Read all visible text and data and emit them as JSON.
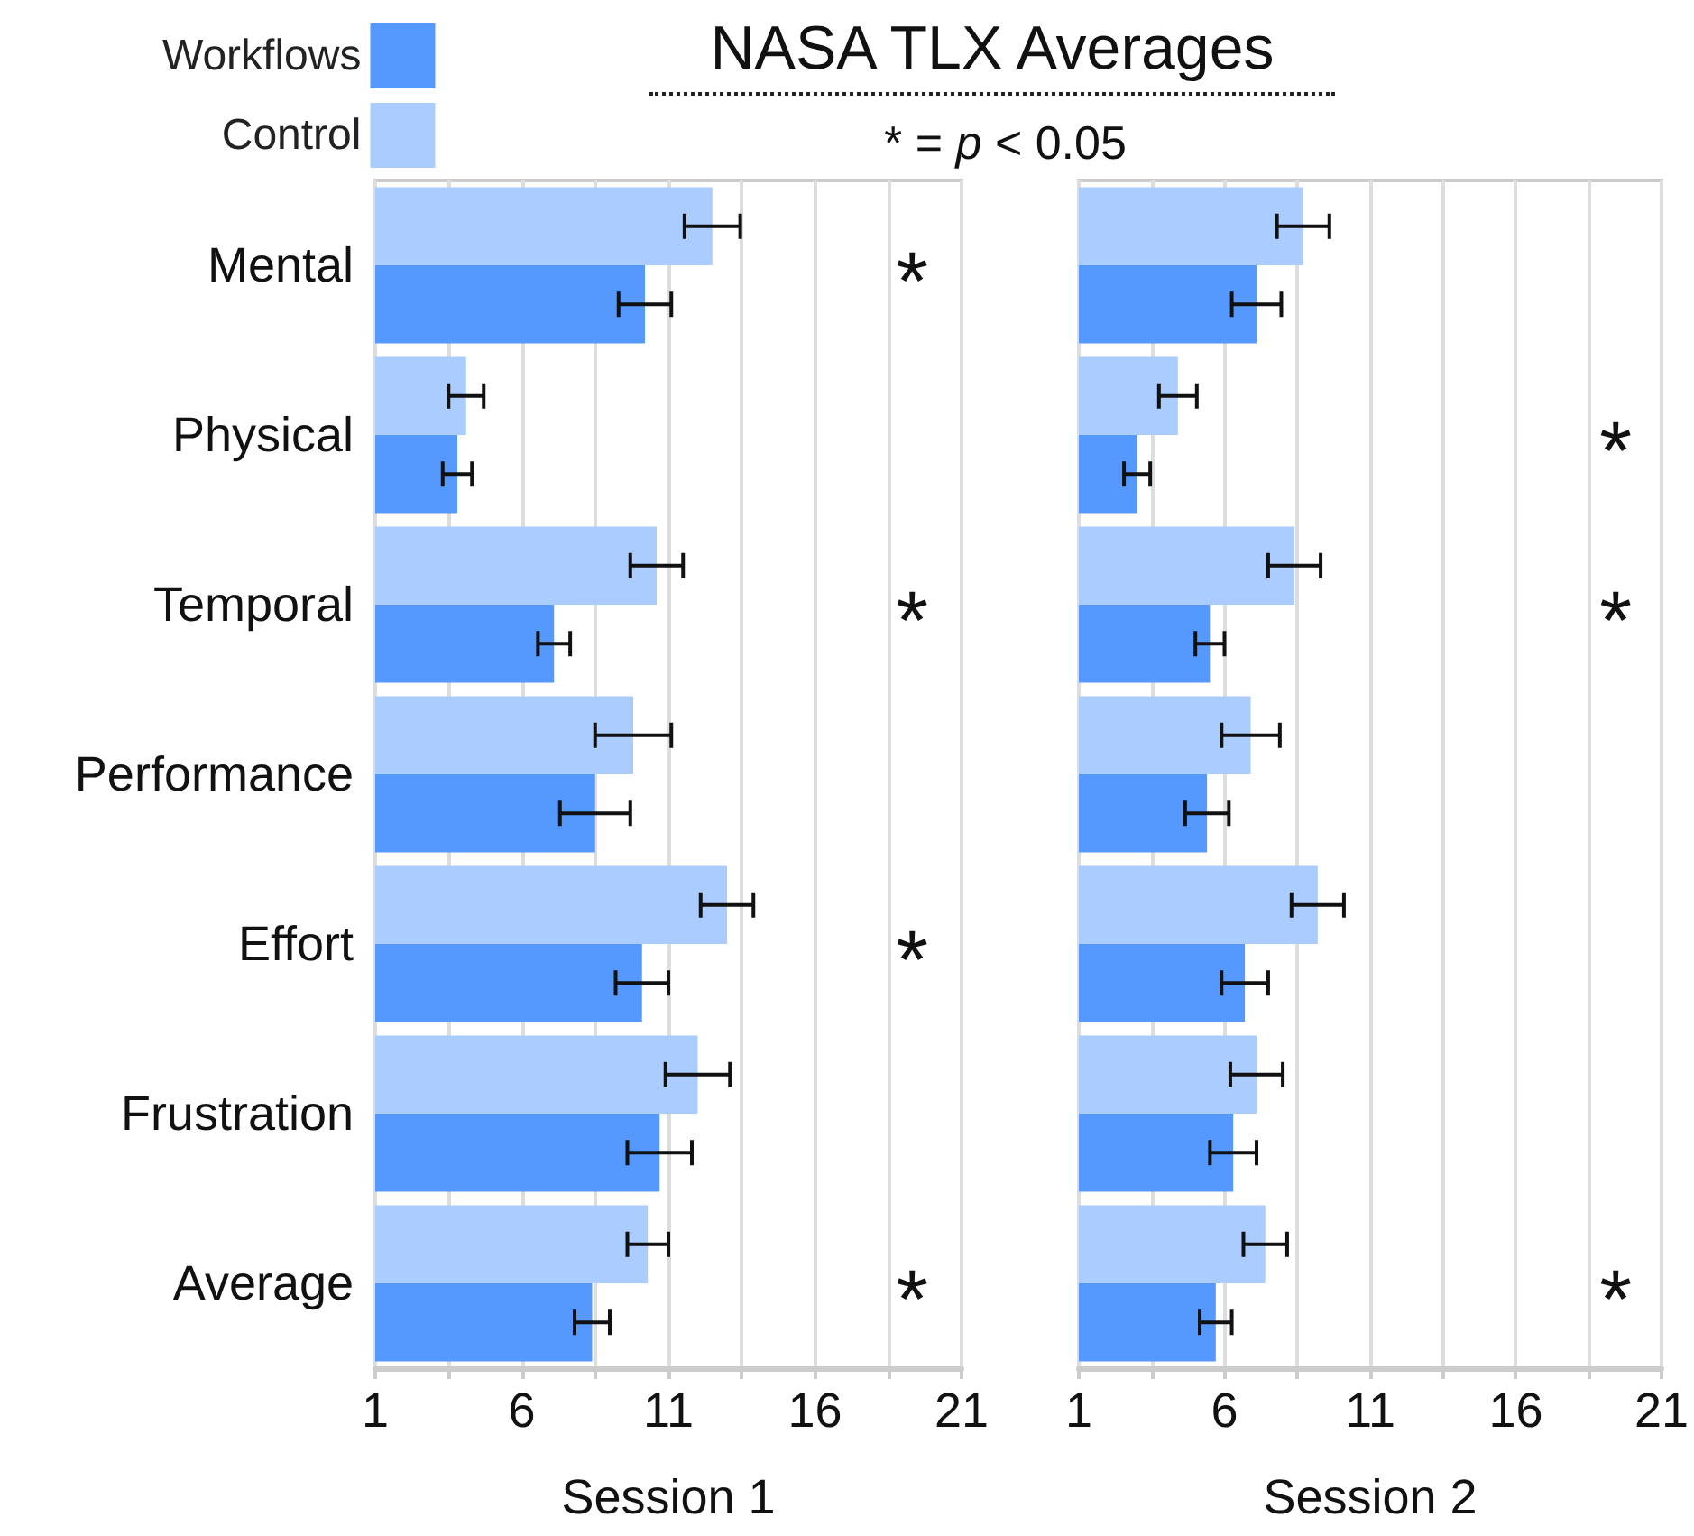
{
  "chart_data": [
    {
      "type": "bar",
      "orientation": "horizontal",
      "title": "NASA TLX Averages",
      "xlabel": "Session 1",
      "categories": [
        "Mental",
        "Physical",
        "Temporal",
        "Performance",
        "Effort",
        "Frustration",
        "Average"
      ],
      "series": [
        {
          "name": "Workflows",
          "color": "#5599ff",
          "values": [
            10.2,
            3.8,
            7.1,
            8.5,
            10.1,
            10.7,
            8.4
          ],
          "errors": [
            0.9,
            0.5,
            0.55,
            1.2,
            0.9,
            1.1,
            0.6
          ]
        },
        {
          "name": "Control",
          "color": "#aaccff",
          "values": [
            12.5,
            4.1,
            10.6,
            9.8,
            13.0,
            12.0,
            10.3
          ],
          "errors": [
            0.95,
            0.6,
            0.9,
            1.3,
            0.9,
            1.1,
            0.7
          ],
          "value_labels": [
            "*",
            null,
            "*",
            null,
            "*",
            null,
            "*"
          ]
        }
      ],
      "xlim": [
        1,
        21
      ],
      "xticks": [
        1,
        {
          "value": 3.5,
          "label": null
        },
        6,
        {
          "value": 8.5,
          "label": null
        },
        11,
        {
          "value": 13.5,
          "label": null
        },
        16,
        {
          "value": 18.5,
          "label": null
        },
        21
      ],
      "grid": "x",
      "legend": "top left",
      "annotations": [
        "* = p < 0.05"
      ]
    },
    {
      "type": "bar",
      "orientation": "horizontal",
      "xlabel": "Session 2",
      "categories": [
        null,
        null,
        null,
        null,
        null,
        null,
        null
      ],
      "series": [
        {
          "color": "#5599ff",
          "values": [
            7.1,
            3.0,
            5.5,
            5.4,
            6.7,
            6.3,
            5.7
          ],
          "errors": [
            0.85,
            0.45,
            0.5,
            0.75,
            0.8,
            0.8,
            0.55
          ]
        },
        {
          "color": "#aaccff",
          "values": [
            8.7,
            4.4,
            8.4,
            6.9,
            9.2,
            7.1,
            7.4
          ],
          "errors": [
            0.9,
            0.65,
            0.9,
            1.0,
            0.9,
            0.9,
            0.75
          ],
          "value_labels": [
            null,
            "*",
            "*",
            null,
            null,
            null,
            "*"
          ]
        }
      ],
      "xlim": [
        1,
        21
      ],
      "xticks": [
        1,
        {
          "value": 3.5,
          "label": null
        },
        6,
        {
          "value": 8.5,
          "label": null
        },
        11,
        {
          "value": 13.5,
          "label": null
        },
        16,
        {
          "value": 18.5,
          "label": null
        },
        21
      ],
      "grid": "x",
      "tick_labels": "x"
    }
  ]
}
